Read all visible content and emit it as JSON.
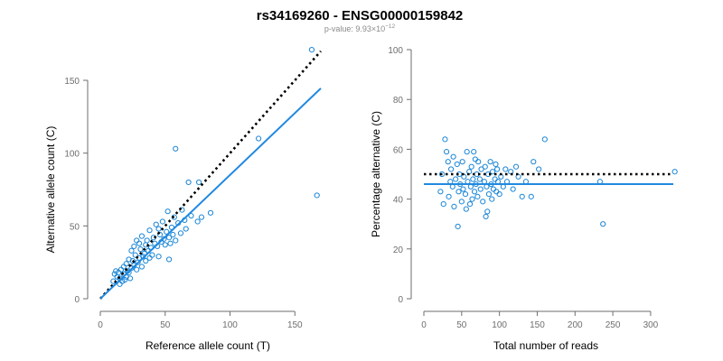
{
  "title": "rs34169260 - ENSG00000159842",
  "subtitle": {
    "prefix": "p-value: 9.93×10",
    "exponent": "−12"
  },
  "colors": {
    "points": "#1a86d6",
    "fit_line": "#2189e0",
    "reference_line": "#000000",
    "axis": "#6e6e6e"
  },
  "chart_data": [
    {
      "type": "scatter",
      "title": "",
      "xlabel": "Reference allele count (T)",
      "ylabel": "Alternative allele count (C)",
      "xlim": [
        0,
        170
      ],
      "ylim": [
        0,
        150
      ],
      "x_ticks": [
        0,
        50,
        100,
        150
      ],
      "y_ticks": [
        0,
        50,
        100,
        150
      ],
      "grid": false,
      "points": [
        [
          10,
          12
        ],
        [
          11,
          17
        ],
        [
          12,
          19
        ],
        [
          13,
          15
        ],
        [
          14,
          18
        ],
        [
          15,
          10
        ],
        [
          15,
          14
        ],
        [
          16,
          20
        ],
        [
          17,
          12
        ],
        [
          18,
          22
        ],
        [
          18,
          17
        ],
        [
          19,
          13
        ],
        [
          20,
          24
        ],
        [
          20,
          15
        ],
        [
          21,
          19
        ],
        [
          22,
          27
        ],
        [
          22,
          18
        ],
        [
          23,
          14
        ],
        [
          24,
          33
        ],
        [
          24,
          21
        ],
        [
          25,
          26
        ],
        [
          26,
          36
        ],
        [
          26,
          23
        ],
        [
          27,
          30
        ],
        [
          28,
          20
        ],
        [
          28,
          40
        ],
        [
          29,
          25
        ],
        [
          30,
          38
        ],
        [
          30,
          28
        ],
        [
          31,
          34
        ],
        [
          32,
          22
        ],
        [
          32,
          43
        ],
        [
          33,
          29
        ],
        [
          34,
          31
        ],
        [
          35,
          37
        ],
        [
          35,
          26
        ],
        [
          36,
          40
        ],
        [
          37,
          33
        ],
        [
          38,
          47
        ],
        [
          38,
          28
        ],
        [
          39,
          35
        ],
        [
          40,
          30
        ],
        [
          41,
          42
        ],
        [
          42,
          38
        ],
        [
          43,
          51
        ],
        [
          44,
          36
        ],
        [
          45,
          29
        ],
        [
          45,
          48
        ],
        [
          46,
          44
        ],
        [
          47,
          39
        ],
        [
          48,
          53
        ],
        [
          49,
          41
        ],
        [
          50,
          37
        ],
        [
          51,
          46
        ],
        [
          52,
          60
        ],
        [
          53,
          27
        ],
        [
          53,
          42
        ],
        [
          54,
          38
        ],
        [
          55,
          49
        ],
        [
          56,
          44
        ],
        [
          57,
          56
        ],
        [
          58,
          103
        ],
        [
          58,
          40
        ],
        [
          60,
          52
        ],
        [
          62,
          45
        ],
        [
          63,
          61
        ],
        [
          65,
          54
        ],
        [
          66,
          48
        ],
        [
          68,
          80
        ],
        [
          70,
          57
        ],
        [
          75,
          53
        ],
        [
          76,
          80
        ],
        [
          78,
          56
        ],
        [
          85,
          59
        ],
        [
          122,
          110
        ],
        [
          163,
          171
        ],
        [
          167,
          71
        ]
      ],
      "fit_line": {
        "slope": 0.85,
        "intercept": 0,
        "x_range": [
          0,
          170
        ]
      },
      "reference_line": {
        "slope": 1,
        "intercept": 0,
        "x_range": [
          0,
          170
        ]
      }
    },
    {
      "type": "scatter",
      "title": "",
      "xlabel": "Total number of reads",
      "ylabel": "Percentage alternative (C)",
      "xlim": [
        0,
        330
      ],
      "ylim": [
        0,
        100
      ],
      "x_ticks": [
        0,
        50,
        100,
        150,
        200,
        250,
        300
      ],
      "y_ticks": [
        0,
        20,
        40,
        60,
        80,
        100
      ],
      "grid": false,
      "points": [
        [
          22,
          43
        ],
        [
          24,
          50
        ],
        [
          26,
          38
        ],
        [
          28,
          64
        ],
        [
          30,
          59
        ],
        [
          32,
          55
        ],
        [
          33,
          41
        ],
        [
          35,
          47
        ],
        [
          36,
          52
        ],
        [
          38,
          45
        ],
        [
          39,
          57
        ],
        [
          40,
          37
        ],
        [
          42,
          48
        ],
        [
          44,
          54
        ],
        [
          45,
          29
        ],
        [
          46,
          43
        ],
        [
          47,
          50
        ],
        [
          48,
          46
        ],
        [
          50,
          39
        ],
        [
          51,
          55
        ],
        [
          52,
          44
        ],
        [
          53,
          49
        ],
        [
          55,
          42
        ],
        [
          56,
          36
        ],
        [
          57,
          59
        ],
        [
          58,
          47
        ],
        [
          60,
          51
        ],
        [
          61,
          38
        ],
        [
          62,
          45
        ],
        [
          63,
          53
        ],
        [
          64,
          40
        ],
        [
          65,
          48
        ],
        [
          66,
          59
        ],
        [
          67,
          43
        ],
        [
          68,
          56
        ],
        [
          69,
          46
        ],
        [
          70,
          50
        ],
        [
          71,
          41
        ],
        [
          72,
          55
        ],
        [
          74,
          48
        ],
        [
          75,
          44
        ],
        [
          76,
          52
        ],
        [
          78,
          39
        ],
        [
          80,
          47
        ],
        [
          81,
          53
        ],
        [
          82,
          33
        ],
        [
          83,
          45
        ],
        [
          84,
          35
        ],
        [
          85,
          50
        ],
        [
          86,
          42
        ],
        [
          88,
          55
        ],
        [
          89,
          46
        ],
        [
          90,
          40
        ],
        [
          91,
          51
        ],
        [
          92,
          44
        ],
        [
          94,
          48
        ],
        [
          95,
          54
        ],
        [
          96,
          43
        ],
        [
          97,
          52
        ],
        [
          98,
          47
        ],
        [
          100,
          42
        ],
        [
          102,
          49
        ],
        [
          105,
          45
        ],
        [
          108,
          52
        ],
        [
          110,
          47
        ],
        [
          115,
          51
        ],
        [
          118,
          44
        ],
        [
          122,
          53
        ],
        [
          125,
          49
        ],
        [
          130,
          41
        ],
        [
          135,
          47
        ],
        [
          142,
          41
        ],
        [
          145,
          55
        ],
        [
          152,
          52
        ],
        [
          160,
          64
        ],
        [
          233,
          47
        ],
        [
          237,
          30
        ],
        [
          332,
          51
        ]
      ],
      "fit_line": {
        "y": 46,
        "x_range": [
          0,
          330
        ]
      },
      "reference_line": {
        "y": 50,
        "x_range": [
          0,
          330
        ]
      }
    }
  ]
}
